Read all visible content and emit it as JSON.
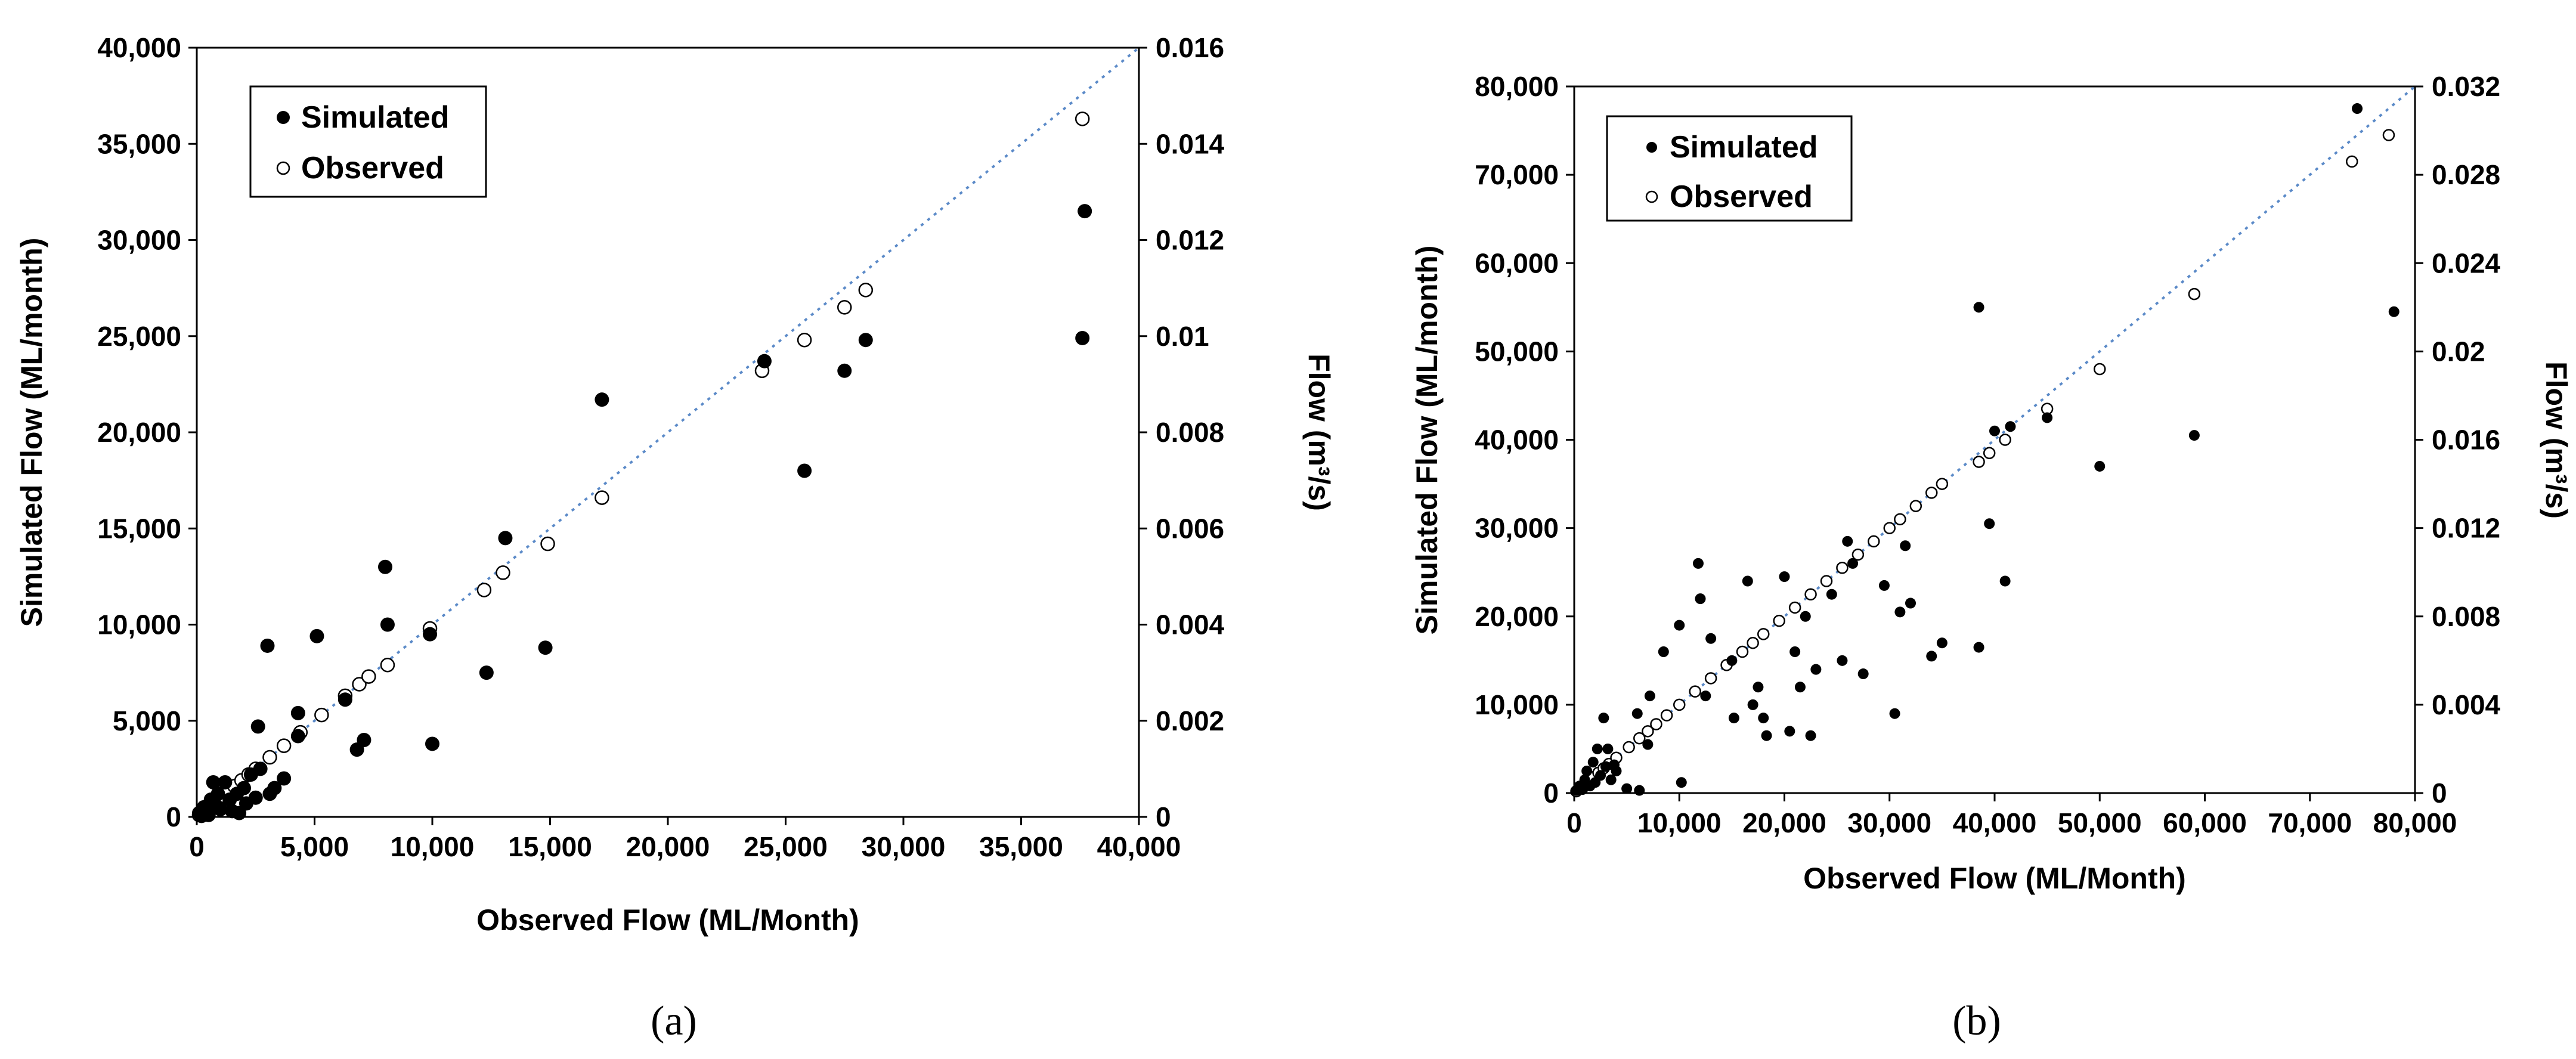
{
  "captions": [
    "(a)",
    "(b)"
  ],
  "chart_data": [
    {
      "type": "scatter",
      "panel": "a",
      "caption": "(a)",
      "xlabel": "Observed Flow (ML/Month)",
      "ylabel": "Simulated Flow (ML/month)",
      "y2label": "Flow (m³/s)",
      "xlim": [
        0,
        40000
      ],
      "ylim": [
        0,
        40000
      ],
      "y2lim": [
        0,
        0.016
      ],
      "xticks": [
        "0",
        "5,000",
        "10,000",
        "15,000",
        "20,000",
        "25,000",
        "30,000",
        "35,000",
        "40,000"
      ],
      "yticks": [
        "0",
        "5,000",
        "10,000",
        "15,000",
        "20,000",
        "25,000",
        "30,000",
        "35,000",
        "40,000"
      ],
      "y2ticks": [
        "0",
        "0.002",
        "0.004",
        "0.006",
        "0.008",
        "0.01",
        "0.012",
        "0.014",
        "0.016"
      ],
      "reference_line": "1:1 dotted line",
      "legend": [
        "Simulated",
        "Observed"
      ],
      "series": [
        {
          "name": "Simulated",
          "marker": "filled-circle",
          "points": [
            [
              100,
              200
            ],
            [
              200,
              50
            ],
            [
              300,
              500
            ],
            [
              400,
              300
            ],
            [
              500,
              100
            ],
            [
              600,
              900
            ],
            [
              700,
              1800
            ],
            [
              800,
              600
            ],
            [
              900,
              1200
            ],
            [
              1000,
              400
            ],
            [
              1200,
              1800
            ],
            [
              1400,
              900
            ],
            [
              1500,
              300
            ],
            [
              1700,
              1200
            ],
            [
              1800,
              200
            ],
            [
              2000,
              1500
            ],
            [
              2100,
              700
            ],
            [
              2300,
              2200
            ],
            [
              2500,
              1000
            ],
            [
              2600,
              4700
            ],
            [
              2700,
              2500
            ],
            [
              3000,
              8900
            ],
            [
              3100,
              1200
            ],
            [
              3300,
              1500
            ],
            [
              3700,
              2000
            ],
            [
              4300,
              5400
            ],
            [
              4300,
              4200
            ],
            [
              5100,
              9400
            ],
            [
              6300,
              6100
            ],
            [
              6800,
              3500
            ],
            [
              7100,
              4000
            ],
            [
              8000,
              13000
            ],
            [
              8100,
              10000
            ],
            [
              9900,
              9500
            ],
            [
              10000,
              3800
            ],
            [
              12300,
              7500
            ],
            [
              13100,
              14500
            ],
            [
              14800,
              8800
            ],
            [
              17200,
              21700
            ],
            [
              24100,
              23700
            ],
            [
              25800,
              18000
            ],
            [
              27500,
              23200
            ],
            [
              28400,
              24800
            ],
            [
              37700,
              31500
            ],
            [
              37600,
              24900
            ]
          ]
        },
        {
          "name": "Observed",
          "marker": "open-circle",
          "points": [
            [
              100,
              100
            ],
            [
              300,
              300
            ],
            [
              500,
              500
            ],
            [
              700,
              700
            ],
            [
              900,
              900
            ],
            [
              1100,
              1100
            ],
            [
              1300,
              1300
            ],
            [
              1600,
              1600
            ],
            [
              1900,
              1900
            ],
            [
              2200,
              2200
            ],
            [
              2500,
              2500
            ],
            [
              3100,
              3100
            ],
            [
              3700,
              3700
            ],
            [
              4400,
              4400
            ],
            [
              5300,
              5300
            ],
            [
              6300,
              6300
            ],
            [
              6900,
              6900
            ],
            [
              7300,
              7300
            ],
            [
              8100,
              7900
            ],
            [
              9900,
              9800
            ],
            [
              12200,
              11800
            ],
            [
              13000,
              12700
            ],
            [
              14900,
              14200
            ],
            [
              17200,
              16600
            ],
            [
              24000,
              23200
            ],
            [
              25800,
              24800
            ],
            [
              27500,
              26500
            ],
            [
              28400,
              27400
            ],
            [
              37600,
              36300
            ]
          ]
        }
      ]
    },
    {
      "type": "scatter",
      "panel": "b",
      "caption": "(b)",
      "xlabel": "Observed Flow (ML/Month)",
      "ylabel": "Simulated Flow (ML/month)",
      "y2label": "Flow (m³/s)",
      "xlim": [
        0,
        80000
      ],
      "ylim": [
        0,
        80000
      ],
      "y2lim": [
        0,
        0.032
      ],
      "xticks": [
        "0",
        "10,000",
        "20,000",
        "30,000",
        "40,000",
        "50,000",
        "60,000",
        "70,000",
        "80,000"
      ],
      "yticks": [
        "0",
        "10,000",
        "20,000",
        "30,000",
        "40,000",
        "50,000",
        "60,000",
        "70,000",
        "80,000"
      ],
      "y2ticks": [
        "0",
        "0.004",
        "0.008",
        "0.012",
        "0.016",
        "0.02",
        "0.024",
        "0.028",
        "0.032"
      ],
      "reference_line": "1:1 dotted line",
      "legend": [
        "Simulated",
        "Observed"
      ],
      "series": [
        {
          "name": "Simulated",
          "marker": "filled-circle",
          "points": [
            [
              200,
              300
            ],
            [
              500,
              800
            ],
            [
              800,
              400
            ],
            [
              1000,
              1500
            ],
            [
              1200,
              2500
            ],
            [
              1500,
              800
            ],
            [
              1800,
              3500
            ],
            [
              2000,
              1200
            ],
            [
              2200,
              5000
            ],
            [
              2500,
              2000
            ],
            [
              2800,
              8500
            ],
            [
              3000,
              3000
            ],
            [
              3200,
              5000
            ],
            [
              3500,
              1500
            ],
            [
              3800,
              3200
            ],
            [
              4000,
              2500
            ],
            [
              5000,
              500
            ],
            [
              6000,
              9000
            ],
            [
              6200,
              300
            ],
            [
              7000,
              5500
            ],
            [
              7200,
              11000
            ],
            [
              8500,
              16000
            ],
            [
              10000,
              19000
            ],
            [
              10200,
              1200
            ],
            [
              11800,
              26000
            ],
            [
              12000,
              22000
            ],
            [
              12500,
              11000
            ],
            [
              13000,
              17500
            ],
            [
              15000,
              15000
            ],
            [
              15200,
              8500
            ],
            [
              16500,
              24000
            ],
            [
              17000,
              10000
            ],
            [
              17500,
              12000
            ],
            [
              18000,
              8500
            ],
            [
              18300,
              6500
            ],
            [
              20000,
              24500
            ],
            [
              20500,
              7000
            ],
            [
              21000,
              16000
            ],
            [
              21500,
              12000
            ],
            [
              22000,
              20000
            ],
            [
              22500,
              6500
            ],
            [
              23000,
              14000
            ],
            [
              24500,
              22500
            ],
            [
              25500,
              15000
            ],
            [
              26000,
              28500
            ],
            [
              26500,
              26000
            ],
            [
              27500,
              13500
            ],
            [
              29500,
              23500
            ],
            [
              30500,
              9000
            ],
            [
              31000,
              20500
            ],
            [
              31500,
              28000
            ],
            [
              32000,
              21500
            ],
            [
              34000,
              15500
            ],
            [
              35000,
              17000
            ],
            [
              38500,
              55000
            ],
            [
              38500,
              16500
            ],
            [
              39500,
              30500
            ],
            [
              40000,
              41000
            ],
            [
              41000,
              24000
            ],
            [
              41500,
              41500
            ],
            [
              45000,
              42500
            ],
            [
              50000,
              37000
            ],
            [
              59000,
              40500
            ],
            [
              74500,
              77500
            ],
            [
              78000,
              54500
            ]
          ]
        },
        {
          "name": "Observed",
          "marker": "open-circle",
          "points": [
            [
              200,
              200
            ],
            [
              500,
              500
            ],
            [
              900,
              900
            ],
            [
              1300,
              1300
            ],
            [
              1800,
              1800
            ],
            [
              2300,
              2300
            ],
            [
              2800,
              2800
            ],
            [
              3300,
              3300
            ],
            [
              4000,
              4000
            ],
            [
              5200,
              5200
            ],
            [
              6200,
              6200
            ],
            [
              7000,
              7000
            ],
            [
              7800,
              7800
            ],
            [
              8800,
              8800
            ],
            [
              10000,
              10000
            ],
            [
              11500,
              11500
            ],
            [
              13000,
              13000
            ],
            [
              14500,
              14500
            ],
            [
              16000,
              16000
            ],
            [
              17000,
              17000
            ],
            [
              18000,
              18000
            ],
            [
              19500,
              19500
            ],
            [
              21000,
              21000
            ],
            [
              22500,
              22500
            ],
            [
              24000,
              24000
            ],
            [
              25500,
              25500
            ],
            [
              27000,
              27000
            ],
            [
              28500,
              28500
            ],
            [
              30000,
              30000
            ],
            [
              31000,
              31000
            ],
            [
              32500,
              32500
            ],
            [
              34000,
              34000
            ],
            [
              35000,
              35000
            ],
            [
              38500,
              37500
            ],
            [
              39500,
              38500
            ],
            [
              41000,
              40000
            ],
            [
              45000,
              43500
            ],
            [
              50000,
              48000
            ],
            [
              59000,
              56500
            ],
            [
              74000,
              71500
            ],
            [
              77500,
              74500
            ]
          ]
        }
      ]
    }
  ]
}
